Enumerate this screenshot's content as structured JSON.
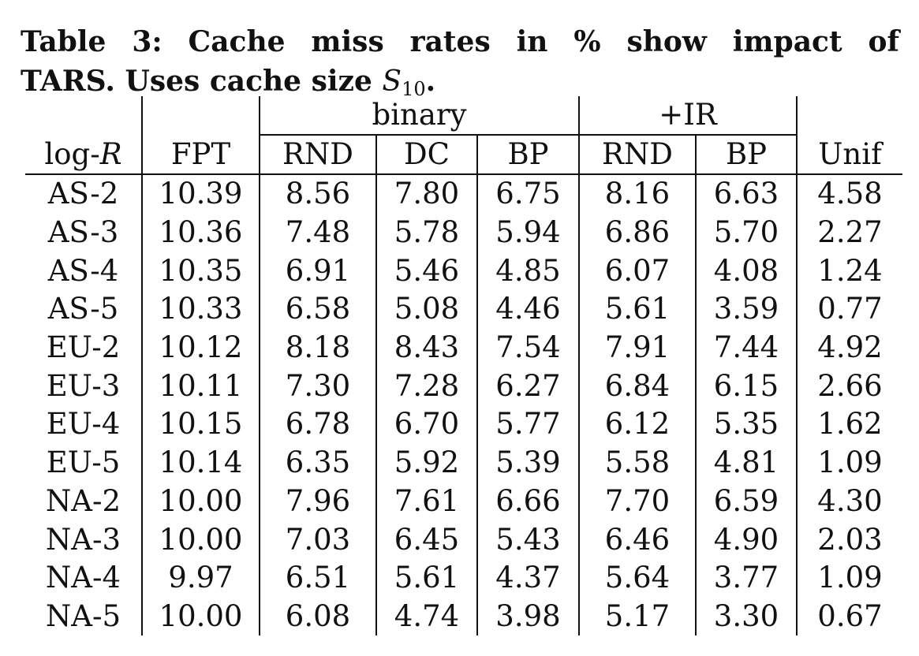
{
  "caption": {
    "line1": "Table 3:  Cache miss rates in % show impact of",
    "line2_prefix": "TARS. Uses cache size ",
    "math_symbol": "S",
    "math_subscript": "10",
    "line2_suffix": "."
  },
  "table": {
    "group_headers": {
      "binary": "binary",
      "ir": "+IR"
    },
    "column_headers": {
      "log_r_prefix": "log-",
      "log_r_var": "R",
      "fpt": "FPT",
      "binary_rnd": "RND",
      "binary_dc": "DC",
      "binary_bp": "BP",
      "ir_rnd": "RND",
      "ir_bp": "BP",
      "unif": "Unif"
    },
    "rows": [
      {
        "label": "AS-2",
        "fpt": "10.39",
        "b_rnd": "8.56",
        "b_dc": "7.80",
        "b_bp": "6.75",
        "ir_rnd": "8.16",
        "ir_bp": "6.63",
        "unif": "4.58"
      },
      {
        "label": "AS-3",
        "fpt": "10.36",
        "b_rnd": "7.48",
        "b_dc": "5.78",
        "b_bp": "5.94",
        "ir_rnd": "6.86",
        "ir_bp": "5.70",
        "unif": "2.27"
      },
      {
        "label": "AS-4",
        "fpt": "10.35",
        "b_rnd": "6.91",
        "b_dc": "5.46",
        "b_bp": "4.85",
        "ir_rnd": "6.07",
        "ir_bp": "4.08",
        "unif": "1.24"
      },
      {
        "label": "AS-5",
        "fpt": "10.33",
        "b_rnd": "6.58",
        "b_dc": "5.08",
        "b_bp": "4.46",
        "ir_rnd": "5.61",
        "ir_bp": "3.59",
        "unif": "0.77"
      },
      {
        "label": "EU-2",
        "fpt": "10.12",
        "b_rnd": "8.18",
        "b_dc": "8.43",
        "b_bp": "7.54",
        "ir_rnd": "7.91",
        "ir_bp": "7.44",
        "unif": "4.92"
      },
      {
        "label": "EU-3",
        "fpt": "10.11",
        "b_rnd": "7.30",
        "b_dc": "7.28",
        "b_bp": "6.27",
        "ir_rnd": "6.84",
        "ir_bp": "6.15",
        "unif": "2.66"
      },
      {
        "label": "EU-4",
        "fpt": "10.15",
        "b_rnd": "6.78",
        "b_dc": "6.70",
        "b_bp": "5.77",
        "ir_rnd": "6.12",
        "ir_bp": "5.35",
        "unif": "1.62"
      },
      {
        "label": "EU-5",
        "fpt": "10.14",
        "b_rnd": "6.35",
        "b_dc": "5.92",
        "b_bp": "5.39",
        "ir_rnd": "5.58",
        "ir_bp": "4.81",
        "unif": "1.09"
      },
      {
        "label": "NA-2",
        "fpt": "10.00",
        "b_rnd": "7.96",
        "b_dc": "7.61",
        "b_bp": "6.66",
        "ir_rnd": "7.70",
        "ir_bp": "6.59",
        "unif": "4.30"
      },
      {
        "label": "NA-3",
        "fpt": "10.00",
        "b_rnd": "7.03",
        "b_dc": "6.45",
        "b_bp": "5.43",
        "ir_rnd": "6.46",
        "ir_bp": "4.90",
        "unif": "2.03"
      },
      {
        "label": "NA-4",
        "fpt": "9.97",
        "b_rnd": "6.51",
        "b_dc": "5.61",
        "b_bp": "4.37",
        "ir_rnd": "5.64",
        "ir_bp": "3.77",
        "unif": "1.09"
      },
      {
        "label": "NA-5",
        "fpt": "10.00",
        "b_rnd": "6.08",
        "b_dc": "4.74",
        "b_bp": "3.98",
        "ir_rnd": "5.17",
        "ir_bp": "3.30",
        "unif": "0.67"
      }
    ]
  }
}
